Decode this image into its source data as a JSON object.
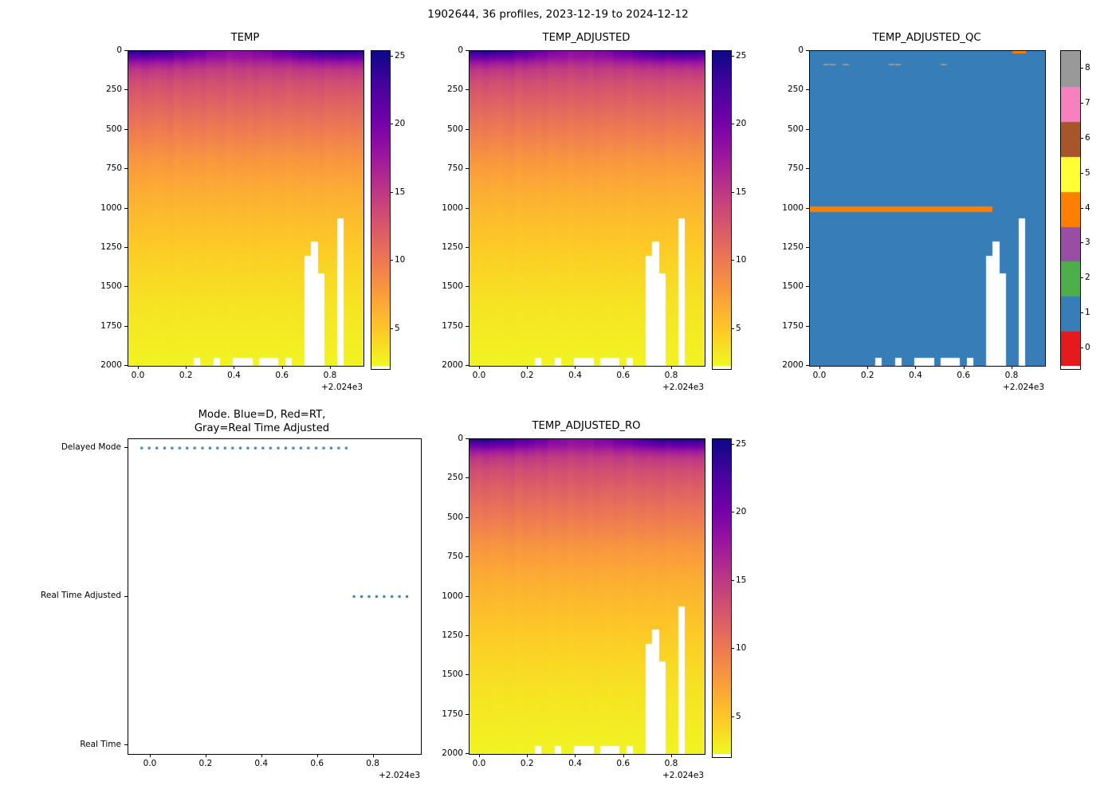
{
  "figure": {
    "title": "1902644, 36 profiles, 2023-12-19 to 2024-12-12",
    "offset_text": "+2.024e3",
    "background": "#ffffff"
  },
  "palette": {
    "plasma_reversed_stops": [
      "#0d0887",
      "#46039f",
      "#7201a8",
      "#9c179e",
      "#bd3786",
      "#d8576b",
      "#ed7953",
      "#fb9f3a",
      "#fdca26",
      "#f0f921"
    ],
    "qc_colors": [
      "#e41a1c",
      "#377eb8",
      "#4daf4a",
      "#984ea3",
      "#ff7f00",
      "#ffff33",
      "#a65628",
      "#f781bf",
      "#999999"
    ],
    "mode_dot_color": "#1f77b4",
    "qc_line_color": "#ff7f00",
    "qc_dash_color": "#999999",
    "qc_background_color": "#377eb8"
  },
  "chart_data": [
    {
      "type": "heatmap",
      "title": "TEMP",
      "xlabel": "",
      "ylabel": "",
      "x_tick_labels": [
        "0.0",
        "0.2",
        "0.4",
        "0.6",
        "0.8"
      ],
      "x_tick_values": [
        2024.0,
        2024.2,
        2024.4,
        2024.6,
        2024.8
      ],
      "x_offset_label": "+2.024e3",
      "xlim": [
        2023.957,
        2024.936
      ],
      "y_ticks": [
        0,
        250,
        500,
        750,
        1000,
        1250,
        1500,
        1750,
        2000
      ],
      "ylim": [
        2000,
        0
      ],
      "colorbar": {
        "ticks": [
          5,
          10,
          15,
          20,
          25
        ],
        "vmin": 2.3,
        "vmax": 25.4,
        "colormap": "plasma_r"
      },
      "profiles": {
        "count": 36,
        "x": [
          2023.968,
          2023.995,
          2024.022,
          2024.05,
          2024.077,
          2024.104,
          2024.131,
          2024.158,
          2024.186,
          2024.213,
          2024.24,
          2024.267,
          2024.294,
          2024.322,
          2024.349,
          2024.376,
          2024.403,
          2024.43,
          2024.458,
          2024.485,
          2024.512,
          2024.539,
          2024.566,
          2024.594,
          2024.621,
          2024.648,
          2024.675,
          2024.702,
          2024.73,
          2024.757,
          2024.784,
          2024.811,
          2024.838,
          2024.866,
          2024.893,
          2024.92
        ],
        "surface_temp": [
          24.6,
          24.9,
          25.1,
          24.8,
          24.5,
          24.1,
          23.6,
          23.0,
          22.4,
          21.7,
          21.0,
          20.4,
          19.8,
          19.3,
          18.9,
          18.6,
          18.5,
          18.6,
          18.8,
          19.1,
          19.5,
          20.0,
          20.6,
          21.2,
          21.9,
          22.5,
          23.1,
          23.7,
          24.2,
          24.6,
          24.9,
          25.1,
          25.2,
          25.1,
          24.9,
          24.7
        ],
        "jitter": [
          0.2,
          -0.1,
          0.3,
          0.0,
          -0.2,
          0.1,
          0.4,
          -0.3,
          0.2,
          0.1,
          -0.1,
          0.3,
          -0.2,
          0.0,
          0.2,
          -0.3,
          0.1,
          0.2,
          -0.1,
          0.3,
          0.0,
          -0.2,
          0.2,
          0.1,
          -0.3,
          0.0,
          0.2,
          -0.1,
          0.1,
          0.3,
          -0.2,
          0.0,
          0.1,
          -0.1,
          0.2,
          0.0
        ],
        "max_depth": [
          2000,
          2000,
          2000,
          2000,
          2000,
          2000,
          2000,
          2000,
          2000,
          2000,
          1945,
          2000,
          2000,
          1945,
          2000,
          2000,
          1945,
          1945,
          1945,
          2000,
          1945,
          1945,
          1945,
          2000,
          1945,
          2000,
          2000,
          1300,
          1210,
          1410,
          2000,
          2000,
          1060,
          2000,
          2000,
          2000
        ]
      },
      "base_profile": {
        "depths": [
          0,
          40,
          80,
          120,
          200,
          300,
          400,
          500,
          700,
          900,
          1100,
          1300,
          1600,
          2000
        ],
        "temps": [
          21,
          19,
          16.5,
          14.8,
          13.2,
          12.0,
          10.9,
          9.9,
          7.9,
          6.5,
          5.5,
          4.6,
          3.5,
          2.6
        ]
      },
      "warm_layer_decay_m": 55
    },
    {
      "type": "heatmap",
      "title": "TEMP_ADJUSTED",
      "same_data_as": "TEMP"
    },
    {
      "type": "qc_heatmap",
      "title": "TEMP_ADJUSTED_QC",
      "background_qc_value": 1,
      "colorbar": {
        "ticks": [
          0,
          1,
          2,
          3,
          4,
          5,
          6,
          7,
          8
        ],
        "discrete": true
      },
      "orange_line": {
        "qc_value": 4,
        "depth_range": [
          985,
          1020
        ],
        "profile_range": [
          0,
          27
        ]
      },
      "gray_dashes": {
        "qc_value": 8,
        "depth": 80,
        "profiles": [
          2,
          3,
          5,
          12,
          13,
          20
        ]
      },
      "surface_marks": {
        "qc_value": 4,
        "depth_range": [
          0,
          16
        ],
        "profiles": [
          31,
          32
        ]
      },
      "same_grid_as": "TEMP"
    },
    {
      "type": "scatter",
      "title_line1": "Mode. Blue=D, Red=RT,",
      "title_line2": "Gray=Real Time Adjusted",
      "y_categories": [
        "Real Time",
        "Real Time Adjusted",
        "Delayed Mode"
      ],
      "delayed_profile_range": [
        0,
        27
      ],
      "real_time_adjusted_profile_range": [
        28,
        35
      ],
      "real_time_profiles": [],
      "marker_color": "#1f77b4",
      "xlim": [
        2023.92,
        2024.97
      ],
      "x_tick_labels": [
        "0.0",
        "0.2",
        "0.4",
        "0.6",
        "0.8"
      ],
      "x_tick_values": [
        2024.0,
        2024.2,
        2024.4,
        2024.6,
        2024.8
      ],
      "x_offset_label": "+2.024e3"
    },
    {
      "type": "heatmap",
      "title": "TEMP_ADJUSTED_RO",
      "same_data_as": "TEMP"
    }
  ]
}
